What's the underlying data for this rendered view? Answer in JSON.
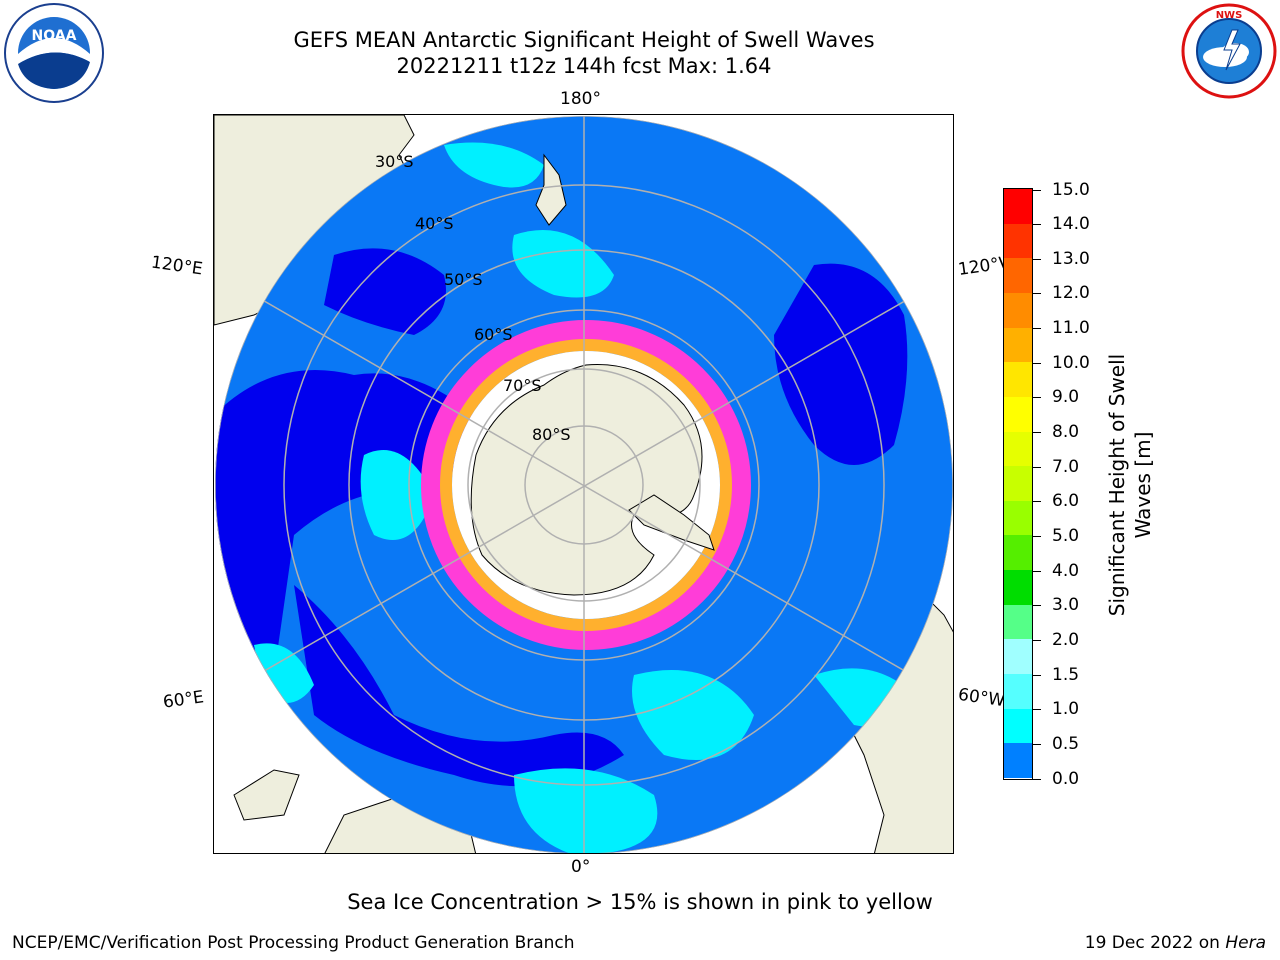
{
  "title": {
    "line1": "GEFS MEAN Antarctic Significant Height of Swell Waves",
    "line2": "20221211 t12z 144h fcst   Max: 1.64"
  },
  "map": {
    "projection": "south polar stereographic",
    "longitude_labels": {
      "top": "180°",
      "bottom": "0°",
      "upper_left": "120°E",
      "upper_right": "120°W",
      "lower_left": "60°E",
      "lower_right": "60°W"
    },
    "latitude_labels": [
      "30°S",
      "40°S",
      "50°S",
      "60°S",
      "70°S",
      "80°S"
    ],
    "colors": {
      "land": "#eeeedd",
      "sea_ice_pink": "#ff3dd8",
      "sea_ice_orange": "#ffb02e",
      "gridline": "#b0b0b0"
    }
  },
  "colorbar": {
    "label": "Significant Height of Swell Waves [m]",
    "ticks": [
      "15.0",
      "14.0",
      "13.0",
      "12.0",
      "11.0",
      "10.0",
      "9.0",
      "8.0",
      "7.0",
      "6.0",
      "5.0",
      "4.0",
      "3.0",
      "2.0",
      "1.5",
      "1.0",
      "0.5",
      "0.0"
    ],
    "colors_top_to_bottom": [
      "#ff0000",
      "#ff3300",
      "#ff6600",
      "#ff8c00",
      "#ffb000",
      "#ffe600",
      "#ffff00",
      "#e6ff00",
      "#c8ff00",
      "#99ff00",
      "#55ee00",
      "#00dd00",
      "#55ff88",
      "#a0ffff",
      "#55ffff",
      "#00ffff",
      "#0080ff",
      "#0000ff"
    ]
  },
  "caption": "Sea Ice Concentration > 15% is shown in pink to yellow",
  "footer": {
    "left": "NCEP/EMC/Verification Post Processing Product Generation Branch",
    "date": "19 Dec 2022 on ",
    "machine": "Hera"
  },
  "logos": {
    "left": "NOAA",
    "right": "NATIONAL WEATHER SERVICE"
  }
}
